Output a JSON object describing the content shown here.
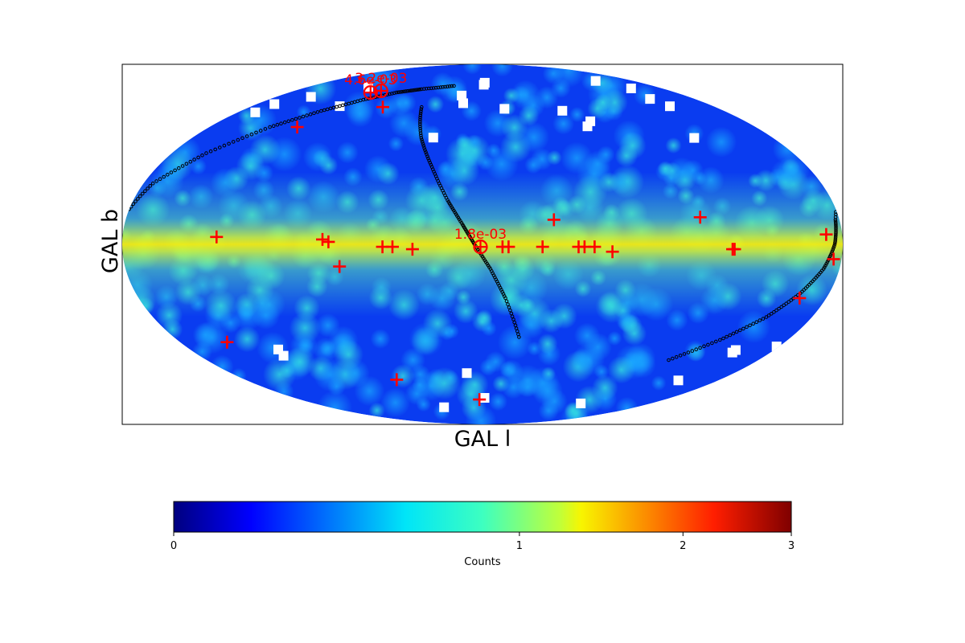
{
  "chart_data": {
    "type": "heatmap",
    "projection": "mollweide",
    "coordinate_system": "galactic",
    "xlabel": "GAL l",
    "ylabel": "GAL b",
    "colormap": "jet",
    "colorbar": {
      "label": "Counts",
      "ticks": [
        {
          "value": 0,
          "label": "0"
        },
        {
          "value": 1,
          "label": "1"
        },
        {
          "value": 2,
          "label": "2"
        },
        {
          "value": 3,
          "label": "3"
        }
      ],
      "range": [
        0,
        3
      ],
      "scale": "nonlinear",
      "placement": "bottom"
    },
    "grid": false,
    "sources": [
      {
        "lon": 77,
        "lat": 60
      },
      {
        "lon": 122,
        "lat": 50
      },
      {
        "lon": 133,
        "lat": 3
      },
      {
        "lon": 80,
        "lat": 2
      },
      {
        "lon": 77,
        "lat": 1
      },
      {
        "lon": 72,
        "lat": -9
      },
      {
        "lon": 50,
        "lat": -1
      },
      {
        "lon": 45,
        "lat": -1
      },
      {
        "lon": 35,
        "lat": -2
      },
      {
        "lon": -10,
        "lat": -1
      },
      {
        "lon": -13,
        "lat": -1
      },
      {
        "lon": -30,
        "lat": -1
      },
      {
        "lon": -48,
        "lat": -1
      },
      {
        "lon": -51,
        "lat": -1
      },
      {
        "lon": -56,
        "lat": -1
      },
      {
        "lon": -65,
        "lat": -3
      },
      {
        "lon": -36,
        "lat": 10
      },
      {
        "lon": -110,
        "lat": 11
      },
      {
        "lon": -125,
        "lat": -2
      },
      {
        "lon": -126,
        "lat": -2
      },
      {
        "lon": -172,
        "lat": 4
      },
      {
        "lon": -176,
        "lat": -6
      },
      {
        "lon": -166,
        "lat": -22
      },
      {
        "lon": 152,
        "lat": -41
      },
      {
        "lon": 65,
        "lat": -59
      },
      {
        "lon": 3,
        "lat": -70
      }
    ],
    "circled_sources": [
      {
        "lon": 104,
        "lat": 68
      },
      {
        "lon": 97,
        "lat": 69
      },
      {
        "lon": 1,
        "lat": -1
      }
    ],
    "annotations": [
      {
        "text": "4.6e-03",
        "lon": 104,
        "lat": 68
      },
      {
        "text": "3.2e-03",
        "lon": 97,
        "lat": 69
      },
      {
        "text": "1.8e-03",
        "lon": 1,
        "lat": -1
      }
    ],
    "ecliptic_track": [
      {
        "lon": 30,
        "lat": 72
      },
      {
        "lon": 60,
        "lat": 70
      },
      {
        "lon": 80,
        "lat": 68
      },
      {
        "lon": 100,
        "lat": 64
      },
      {
        "lon": 120,
        "lat": 58
      },
      {
        "lon": 140,
        "lat": 50
      },
      {
        "lon": 160,
        "lat": 38
      },
      {
        "lon": 175,
        "lat": 25
      },
      {
        "lon": -178,
        "lat": 10
      },
      {
        "lon": -176,
        "lat": 0
      },
      {
        "lon": -172,
        "lat": -10
      },
      {
        "lon": -165,
        "lat": -20
      },
      {
        "lon": -155,
        "lat": -30
      },
      {
        "lon": -140,
        "lat": -40
      },
      {
        "lon": -120,
        "lat": -50
      }
    ],
    "supergalactic_track": [
      {
        "lon": 47,
        "lat": 60
      },
      {
        "lon": 38,
        "lat": 45
      },
      {
        "lon": 28,
        "lat": 32
      },
      {
        "lon": 18,
        "lat": 18
      },
      {
        "lon": 10,
        "lat": 8
      },
      {
        "lon": 4,
        "lat": 0
      },
      {
        "lon": -4,
        "lat": -10
      },
      {
        "lon": -12,
        "lat": -22
      },
      {
        "lon": -22,
        "lat": -40
      }
    ]
  },
  "colors": {
    "marker": "#ff0000",
    "track": "#000000",
    "background": "#ffffff"
  }
}
